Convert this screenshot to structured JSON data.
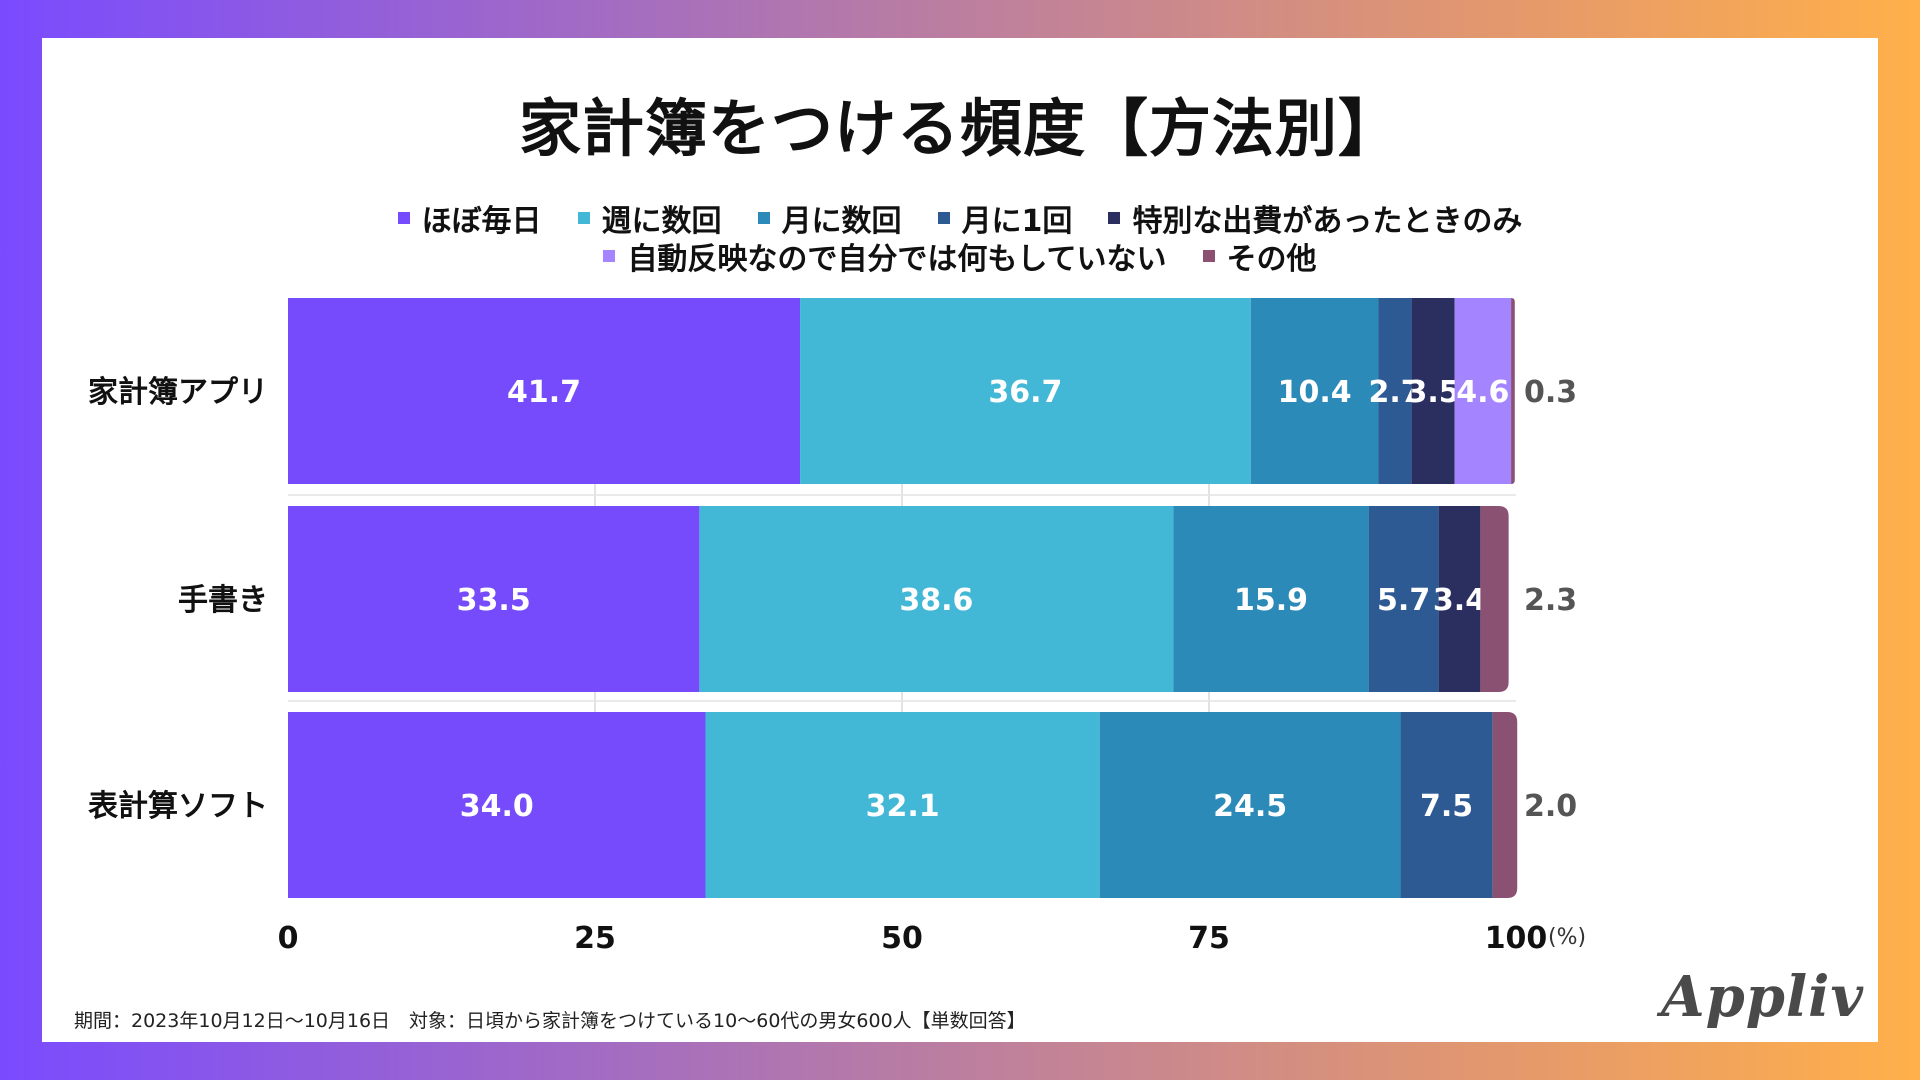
{
  "title": "家計簿をつける頻度【方法別】",
  "footnote": "期間：2023年10月12日〜10月16日　対象：日頃から家計簿をつけている10〜60代の男女600人【単数回答】",
  "logo": "Appliv",
  "chart_data": {
    "type": "bar",
    "orientation": "horizontal",
    "stacked": true,
    "title": "家計簿をつける頻度【方法別】",
    "categories": [
      "家計簿アプリ",
      "手書き",
      "表計算ソフト"
    ],
    "series": [
      {
        "name": "ほぼ毎日",
        "color": "#764bfb",
        "values": [
          41.7,
          33.5,
          34.0
        ]
      },
      {
        "name": "週に数回",
        "color": "#42b7d6",
        "values": [
          36.7,
          38.6,
          32.1
        ]
      },
      {
        "name": "月に数回",
        "color": "#2c8ab9",
        "values": [
          10.4,
          15.9,
          24.5
        ]
      },
      {
        "name": "月に1回",
        "color": "#2e5a93",
        "values": [
          2.7,
          5.7,
          7.5
        ]
      },
      {
        "name": "特別な出費があったときのみ",
        "color": "#2b2f60",
        "values": [
          3.5,
          3.4,
          0
        ]
      },
      {
        "name": "自動反映なので自分では何もしていない",
        "color": "#a585ff",
        "values": [
          4.6,
          0,
          0
        ]
      },
      {
        "name": "その他",
        "color": "#8a5172",
        "values": [
          0.3,
          2.3,
          2.0
        ]
      }
    ],
    "legend_rows": [
      [
        0,
        1,
        2,
        3,
        4
      ],
      [
        5,
        6
      ]
    ],
    "outside_labels": [
      "0.3",
      "2.3",
      "2.0"
    ],
    "x_ticks": [
      "0",
      "25",
      "50",
      "75",
      "100"
    ],
    "xlim": [
      0,
      100
    ],
    "x_unit": "(%)",
    "grid": true,
    "legend_position": "top"
  }
}
